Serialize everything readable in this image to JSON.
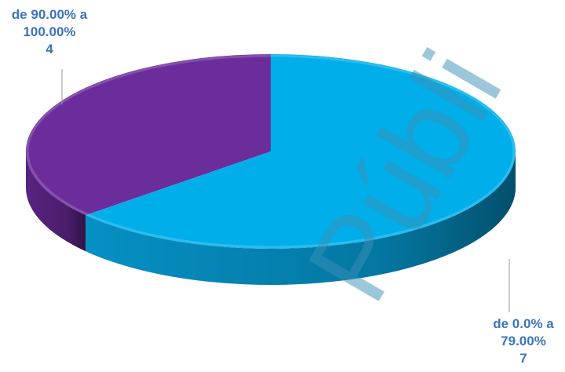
{
  "chart_data": {
    "type": "pie",
    "style": "3d",
    "slices": [
      {
        "label_lines": [
          "de 90.00% a",
          "100.00%"
        ],
        "value": 4,
        "value_text": "4",
        "color": "#6b2d9c",
        "side_color": "#5a2382"
      },
      {
        "label_lines": [
          "de 0.0% a",
          "79.00%"
        ],
        "value": 7,
        "value_text": "7",
        "color": "#00aeea",
        "side_color": "#0590c4"
      }
    ]
  },
  "watermark": {
    "text": "Públi",
    "color": "#3a8fb5"
  }
}
